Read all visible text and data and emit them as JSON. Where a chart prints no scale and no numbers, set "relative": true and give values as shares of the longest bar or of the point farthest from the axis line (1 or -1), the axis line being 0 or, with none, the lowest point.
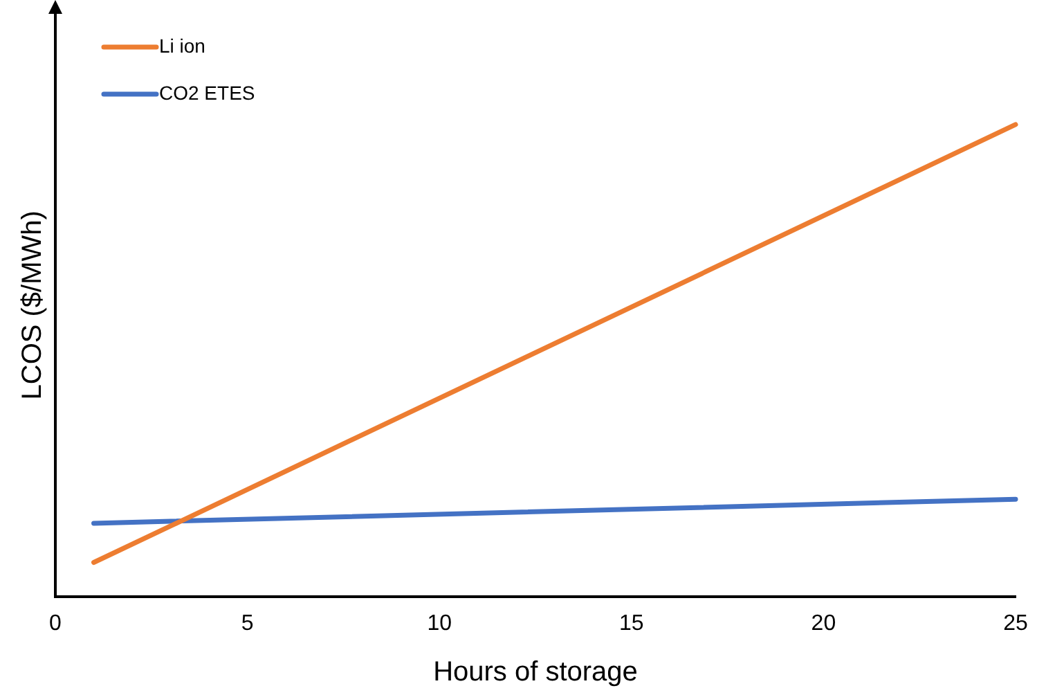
{
  "chart_data": {
    "type": "line",
    "relative": true,
    "xlabel": "Hours of storage",
    "ylabel": "LCOS ($/MWh)",
    "xlim": [
      0,
      25
    ],
    "xticks": [
      0,
      5,
      10,
      15,
      20,
      25
    ],
    "legend": "top left",
    "grid": false,
    "marker": "none",
    "line_style": "solid",
    "x": [
      1,
      25
    ],
    "series": [
      {
        "name": "Li ion",
        "color": "#ed7d31",
        "values": [
          0.072,
          1
        ]
      },
      {
        "name": "CO2 ETES",
        "color": "#4472c4",
        "values": [
          0.155,
          0.206
        ]
      }
    ]
  }
}
